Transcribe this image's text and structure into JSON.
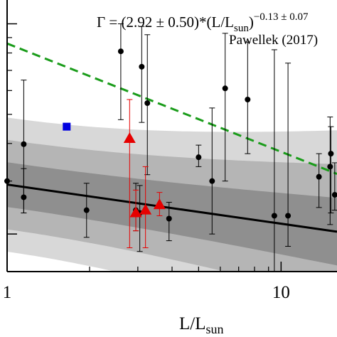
{
  "chart_data": {
    "type": "scatter",
    "title": "",
    "xlabel": "L/L",
    "xlabel_sub": "sun",
    "ylabel": "",
    "x_scale": "log",
    "y_scale": "log",
    "xlim": [
      1,
      16
    ],
    "ylim": [
      1.5,
      12
    ],
    "x_ticks": [
      {
        "value": 1,
        "label": "1"
      },
      {
        "value": 10,
        "label": "10"
      }
    ],
    "x_minor_ticks": [
      2,
      3,
      4,
      5,
      6,
      7,
      8,
      9
    ],
    "y_major_ticks": [
      2,
      10
    ],
    "y_minor_ticks": [
      3,
      4,
      5,
      6,
      7,
      8,
      9
    ],
    "fit_text": {
      "prefix": "Γ = (2.92 ± 0.50)*(L/L",
      "sub": "sun",
      "suffix": ")",
      "exponent": "−0.13 ± 0.07"
    },
    "reference_label": "Pawellek (2017)",
    "fit_line": {
      "a": 2.92,
      "b": -0.13,
      "color": "#000000"
    },
    "reference_line": {
      "a": 8.6,
      "b": -0.36,
      "color": "#1a9c1a",
      "style": "dashed"
    },
    "bands": [
      {
        "sigma": 1,
        "color": "#8f8f8f"
      },
      {
        "sigma": 2,
        "color": "#b5b5b5"
      },
      {
        "sigma": 3,
        "color": "#d8d8d8"
      }
    ],
    "band_params": {
      "a_err": 0.5,
      "b_err": 0.07
    },
    "series": [
      {
        "marker": "circle",
        "color": "#000000",
        "points": [
          {
            "x": 1.0,
            "y": 3.0,
            "lo": 3.0,
            "hi": 3.0
          },
          {
            "x": 1.15,
            "y": 3.98,
            "lo": 2.35,
            "hi": 6.5
          },
          {
            "x": 1.15,
            "y": 2.65,
            "lo": 2.35,
            "hi": 3.3
          },
          {
            "x": 1.95,
            "y": 2.4,
            "lo": 1.95,
            "hi": 2.95
          },
          {
            "x": 2.6,
            "y": 8.1,
            "lo": 4.8,
            "hi": 10.0
          },
          {
            "x": 2.95,
            "y": 2.4,
            "lo": 2.05,
            "hi": 2.95
          },
          {
            "x": 3.05,
            "y": 2.35,
            "lo": 1.75,
            "hi": 2.9
          },
          {
            "x": 3.1,
            "y": 7.2,
            "lo": 4.7,
            "hi": 9.8
          },
          {
            "x": 3.25,
            "y": 5.45,
            "lo": 3.15,
            "hi": 9.2
          },
          {
            "x": 3.9,
            "y": 2.25,
            "lo": 1.9,
            "hi": 2.55
          },
          {
            "x": 5.0,
            "y": 3.6,
            "lo": 3.35,
            "hi": 3.95
          },
          {
            "x": 5.6,
            "y": 3.0,
            "lo": 2.0,
            "hi": 5.25
          },
          {
            "x": 6.25,
            "y": 6.1,
            "lo": 3.0,
            "hi": 9.3
          },
          {
            "x": 7.55,
            "y": 5.6,
            "lo": 3.7,
            "hi": 8.7
          },
          {
            "x": 9.45,
            "y": 2.3,
            "lo": 1.5,
            "hi": 8.2
          },
          {
            "x": 10.6,
            "y": 2.3,
            "lo": 1.82,
            "hi": 7.4
          },
          {
            "x": 13.75,
            "y": 3.1,
            "lo": 2.45,
            "hi": 3.7
          },
          {
            "x": 15.1,
            "y": 3.35,
            "lo": 2.15,
            "hi": 4.9
          },
          {
            "x": 15.2,
            "y": 3.7,
            "lo": 2.35,
            "hi": 4.55
          },
          {
            "x": 15.7,
            "y": 2.7,
            "lo": 2.4,
            "hi": 3.45
          }
        ]
      },
      {
        "marker": "triangle",
        "color": "#e60000",
        "points": [
          {
            "x": 2.8,
            "y": 4.15,
            "lo": 1.8,
            "hi": 5.6
          },
          {
            "x": 2.95,
            "y": 2.35,
            "lo": 2.05,
            "hi": 2.8
          },
          {
            "x": 3.2,
            "y": 2.4,
            "lo": 1.8,
            "hi": 3.35
          },
          {
            "x": 3.6,
            "y": 2.5,
            "lo": 2.3,
            "hi": 2.75
          }
        ]
      },
      {
        "marker": "square",
        "color": "#0000e0",
        "points": [
          {
            "x": 1.65,
            "y": 4.55
          }
        ]
      }
    ]
  }
}
